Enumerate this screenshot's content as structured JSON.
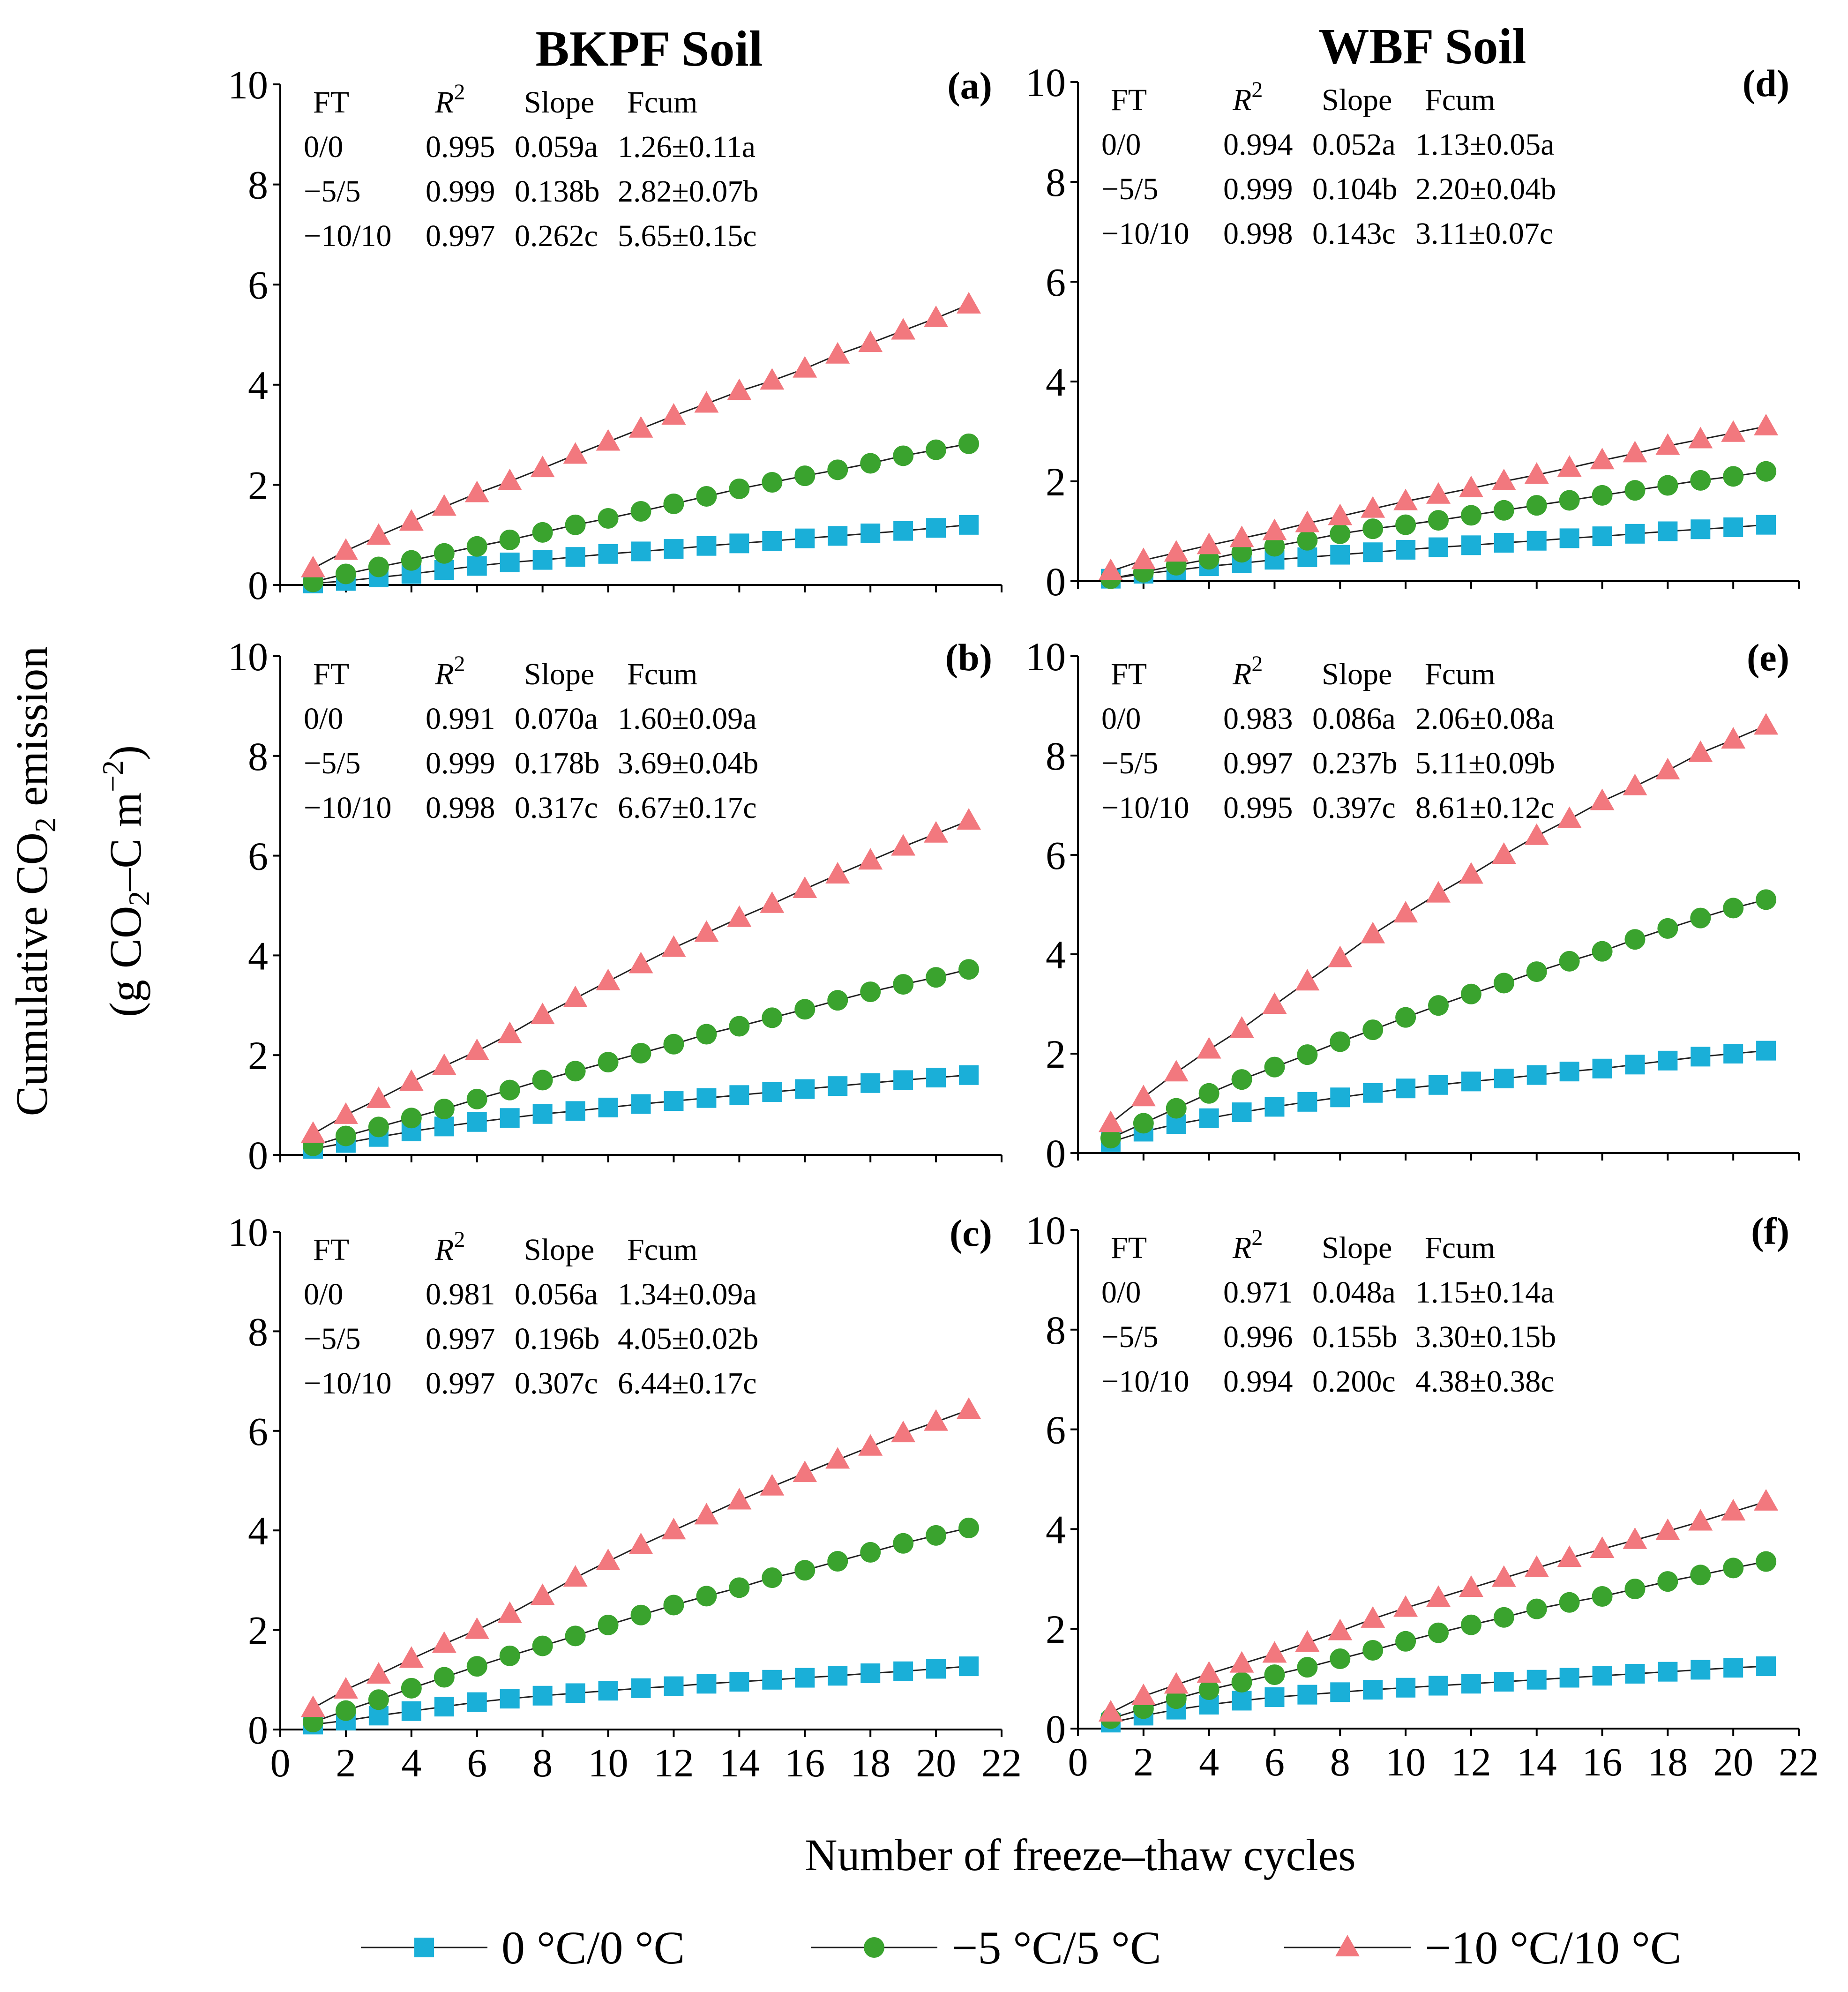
{
  "figure": {
    "col_titles": [
      "BKPF Soil",
      "WBF Soil"
    ],
    "ylabel_line1": "Cumulative CO2 emission",
    "ylabel_line2": "(g CO2–C m−2)",
    "xlabel": "Number of freeze–thaw cycles"
  },
  "legend": [
    {
      "label": "0 °C/0 °C",
      "color": "#1AAFD8",
      "marker": "square"
    },
    {
      "label": "−5 °C/5 °C",
      "color": "#3AA32E",
      "marker": "circle"
    },
    {
      "label": "−10 °C/10 °C",
      "color": "#F2787E",
      "marker": "triangle"
    }
  ],
  "chart_data": [
    {
      "panel": "(a)",
      "soil": "BKPF Soil",
      "type": "line",
      "xlim": [
        0,
        22
      ],
      "ylim": [
        0,
        10
      ],
      "xticks": [
        0,
        2,
        4,
        6,
        8,
        10,
        12,
        14,
        16,
        18,
        20,
        22
      ],
      "yticks": [
        0,
        2,
        4,
        6,
        8,
        10
      ],
      "stats_header": [
        "FT",
        "R2",
        "Slope",
        "Fcum"
      ],
      "stats": [
        [
          "0/0",
          "0.995",
          "0.059a",
          "1.26±0.11a"
        ],
        [
          "−5/5",
          "0.999",
          "0.138b",
          "2.82±0.07b"
        ],
        [
          "−10/10",
          "0.997",
          "0.262c",
          "5.65±0.15c"
        ]
      ],
      "x": [
        1,
        2,
        3,
        4,
        5,
        6,
        7,
        8,
        9,
        10,
        11,
        12,
        13,
        14,
        15,
        16,
        17,
        18,
        19,
        20,
        21
      ],
      "series": [
        {
          "name": "0 °C/0 °C",
          "values": [
            0.03,
            0.08,
            0.15,
            0.22,
            0.3,
            0.38,
            0.45,
            0.5,
            0.56,
            0.62,
            0.67,
            0.72,
            0.78,
            0.83,
            0.88,
            0.93,
            0.98,
            1.03,
            1.08,
            1.14,
            1.2
          ]
        },
        {
          "name": "−5 °C/5 °C",
          "values": [
            0.06,
            0.22,
            0.36,
            0.49,
            0.63,
            0.77,
            0.9,
            1.05,
            1.2,
            1.33,
            1.47,
            1.62,
            1.77,
            1.92,
            2.05,
            2.18,
            2.3,
            2.43,
            2.58,
            2.7,
            2.82
          ]
        },
        {
          "name": "−10 °C/10 °C",
          "values": [
            0.33,
            0.68,
            0.98,
            1.26,
            1.56,
            1.83,
            2.07,
            2.33,
            2.6,
            2.86,
            3.12,
            3.38,
            3.62,
            3.87,
            4.08,
            4.32,
            4.6,
            4.83,
            5.08,
            5.33,
            5.6
          ]
        }
      ]
    },
    {
      "panel": "(b)",
      "soil": "BKPF Soil",
      "type": "line",
      "xlim": [
        0,
        22
      ],
      "ylim": [
        0,
        10
      ],
      "xticks": [
        0,
        2,
        4,
        6,
        8,
        10,
        12,
        14,
        16,
        18,
        20,
        22
      ],
      "yticks": [
        0,
        2,
        4,
        6,
        8,
        10
      ],
      "stats_header": [
        "FT",
        "R2",
        "Slope",
        "Fcum"
      ],
      "stats": [
        [
          "0/0",
          "0.991",
          "0.070a",
          "1.60±0.09a"
        ],
        [
          "−5/5",
          "0.999",
          "0.178b",
          "3.69±0.04b"
        ],
        [
          "−10/10",
          "0.998",
          "0.317c",
          "6.67±0.17c"
        ]
      ],
      "x": [
        1,
        2,
        3,
        4,
        5,
        6,
        7,
        8,
        9,
        10,
        11,
        12,
        13,
        14,
        15,
        16,
        17,
        18,
        19,
        20,
        21
      ],
      "series": [
        {
          "name": "0 °C/0 °C",
          "values": [
            0.12,
            0.24,
            0.36,
            0.47,
            0.57,
            0.66,
            0.74,
            0.82,
            0.88,
            0.95,
            1.02,
            1.08,
            1.14,
            1.2,
            1.26,
            1.32,
            1.38,
            1.44,
            1.5,
            1.55,
            1.6
          ]
        },
        {
          "name": "−5 °C/5 °C",
          "values": [
            0.18,
            0.38,
            0.56,
            0.74,
            0.92,
            1.12,
            1.3,
            1.5,
            1.68,
            1.86,
            2.04,
            2.22,
            2.42,
            2.58,
            2.75,
            2.92,
            3.1,
            3.27,
            3.42,
            3.56,
            3.72
          ]
        },
        {
          "name": "−10 °C/10 °C",
          "values": [
            0.42,
            0.8,
            1.12,
            1.46,
            1.78,
            2.08,
            2.42,
            2.8,
            3.14,
            3.48,
            3.82,
            4.15,
            4.45,
            4.75,
            5.03,
            5.33,
            5.62,
            5.9,
            6.18,
            6.44,
            6.7
          ]
        }
      ]
    },
    {
      "panel": "(c)",
      "soil": "BKPF Soil",
      "type": "line",
      "xlim": [
        0,
        22
      ],
      "ylim": [
        0,
        10
      ],
      "xticks": [
        0,
        2,
        4,
        6,
        8,
        10,
        12,
        14,
        16,
        18,
        20,
        22
      ],
      "yticks": [
        0,
        2,
        4,
        6,
        8,
        10
      ],
      "stats_header": [
        "FT",
        "R2",
        "Slope",
        "Fcum"
      ],
      "stats": [
        [
          "0/0",
          "0.981",
          "0.056a",
          "1.34±0.09a"
        ],
        [
          "−5/5",
          "0.997",
          "0.196b",
          "4.05±0.02b"
        ],
        [
          "−10/10",
          "0.997",
          "0.307c",
          "6.44±0.17c"
        ]
      ],
      "x": [
        1,
        2,
        3,
        4,
        5,
        6,
        7,
        8,
        9,
        10,
        11,
        12,
        13,
        14,
        15,
        16,
        17,
        18,
        19,
        20,
        21
      ],
      "series": [
        {
          "name": "0 °C/0 °C",
          "values": [
            0.1,
            0.18,
            0.28,
            0.37,
            0.46,
            0.55,
            0.62,
            0.68,
            0.73,
            0.78,
            0.83,
            0.87,
            0.92,
            0.96,
            1.0,
            1.04,
            1.08,
            1.13,
            1.17,
            1.22,
            1.27
          ]
        },
        {
          "name": "−5 °C/5 °C",
          "values": [
            0.15,
            0.38,
            0.6,
            0.83,
            1.05,
            1.27,
            1.48,
            1.68,
            1.88,
            2.1,
            2.3,
            2.5,
            2.68,
            2.85,
            3.05,
            3.2,
            3.38,
            3.56,
            3.74,
            3.9,
            4.05
          ]
        },
        {
          "name": "−10 °C/10 °C",
          "values": [
            0.43,
            0.8,
            1.1,
            1.42,
            1.72,
            2.0,
            2.32,
            2.68,
            3.05,
            3.38,
            3.7,
            4.0,
            4.3,
            4.6,
            4.88,
            5.15,
            5.42,
            5.68,
            5.95,
            6.18,
            6.42
          ]
        }
      ]
    },
    {
      "panel": "(d)",
      "soil": "WBF Soil",
      "type": "line",
      "xlim": [
        0,
        22
      ],
      "ylim": [
        0,
        10
      ],
      "xticks": [
        0,
        2,
        4,
        6,
        8,
        10,
        12,
        14,
        16,
        18,
        20,
        22
      ],
      "yticks": [
        0,
        2,
        4,
        6,
        8,
        10
      ],
      "stats_header": [
        "FT",
        "R2",
        "Slope",
        "Fcum"
      ],
      "stats": [
        [
          "0/0",
          "0.994",
          "0.052a",
          "1.13±0.05a"
        ],
        [
          "−5/5",
          "0.999",
          "0.104b",
          "2.20±0.04b"
        ],
        [
          "−10/10",
          "0.998",
          "0.143c",
          "3.11±0.07c"
        ]
      ],
      "x": [
        1,
        2,
        3,
        4,
        5,
        6,
        7,
        8,
        9,
        10,
        11,
        12,
        13,
        14,
        15,
        16,
        17,
        18,
        19,
        20,
        21
      ],
      "series": [
        {
          "name": "0 °C/0 °C",
          "values": [
            0.05,
            0.15,
            0.22,
            0.3,
            0.36,
            0.43,
            0.48,
            0.53,
            0.58,
            0.63,
            0.68,
            0.72,
            0.77,
            0.81,
            0.86,
            0.9,
            0.95,
            1.0,
            1.04,
            1.08,
            1.13
          ]
        },
        {
          "name": "−5 °C/5 °C",
          "values": [
            0.05,
            0.18,
            0.32,
            0.44,
            0.58,
            0.7,
            0.82,
            0.95,
            1.05,
            1.13,
            1.22,
            1.32,
            1.42,
            1.52,
            1.62,
            1.72,
            1.82,
            1.92,
            2.02,
            2.1,
            2.2
          ]
        },
        {
          "name": "−10 °C/10 °C",
          "values": [
            0.2,
            0.42,
            0.57,
            0.72,
            0.86,
            1.0,
            1.16,
            1.3,
            1.45,
            1.6,
            1.73,
            1.86,
            2.0,
            2.13,
            2.27,
            2.42,
            2.56,
            2.71,
            2.84,
            2.97,
            3.1
          ]
        }
      ]
    },
    {
      "panel": "(e)",
      "soil": "WBF Soil",
      "type": "line",
      "xlim": [
        0,
        22
      ],
      "ylim": [
        0,
        10
      ],
      "xticks": [
        0,
        2,
        4,
        6,
        8,
        10,
        12,
        14,
        16,
        18,
        20,
        22
      ],
      "yticks": [
        0,
        2,
        4,
        6,
        8,
        10
      ],
      "stats_header": [
        "FT",
        "R2",
        "Slope",
        "Fcum"
      ],
      "stats": [
        [
          "0/0",
          "0.983",
          "0.086a",
          "2.06±0.08a"
        ],
        [
          "−5/5",
          "0.997",
          "0.237b",
          "5.11±0.09b"
        ],
        [
          "−10/10",
          "0.995",
          "0.397c",
          "8.61±0.12c"
        ]
      ],
      "x": [
        1,
        2,
        3,
        4,
        5,
        6,
        7,
        8,
        9,
        10,
        11,
        12,
        13,
        14,
        15,
        16,
        17,
        18,
        19,
        20,
        21
      ],
      "series": [
        {
          "name": "0 °C/0 °C",
          "values": [
            0.22,
            0.43,
            0.58,
            0.7,
            0.82,
            0.93,
            1.03,
            1.12,
            1.21,
            1.3,
            1.37,
            1.44,
            1.5,
            1.57,
            1.64,
            1.7,
            1.78,
            1.86,
            1.94,
            2.0,
            2.06
          ]
        },
        {
          "name": "−5 °C/5 °C",
          "values": [
            0.3,
            0.6,
            0.9,
            1.2,
            1.48,
            1.73,
            1.98,
            2.24,
            2.48,
            2.73,
            2.97,
            3.2,
            3.42,
            3.65,
            3.86,
            4.06,
            4.3,
            4.52,
            4.73,
            4.93,
            5.1
          ]
        },
        {
          "name": "−10 °C/10 °C",
          "values": [
            0.6,
            1.12,
            1.62,
            2.08,
            2.5,
            2.98,
            3.45,
            3.92,
            4.4,
            4.82,
            5.22,
            5.6,
            6.0,
            6.38,
            6.72,
            7.08,
            7.38,
            7.7,
            8.05,
            8.32,
            8.6
          ]
        }
      ]
    },
    {
      "panel": "(f)",
      "soil": "WBF Soil",
      "type": "line",
      "xlim": [
        0,
        22
      ],
      "ylim": [
        0,
        10
      ],
      "xticks": [
        0,
        2,
        4,
        6,
        8,
        10,
        12,
        14,
        16,
        18,
        20,
        22
      ],
      "yticks": [
        0,
        2,
        4,
        6,
        8,
        10
      ],
      "stats_header": [
        "FT",
        "R2",
        "Slope",
        "Fcum"
      ],
      "stats": [
        [
          "0/0",
          "0.971",
          "0.048a",
          "1.15±0.14a"
        ],
        [
          "−5/5",
          "0.996",
          "0.155b",
          "3.30±0.15b"
        ],
        [
          "−10/10",
          "0.994",
          "0.200c",
          "4.38±0.38c"
        ]
      ],
      "x": [
        1,
        2,
        3,
        4,
        5,
        6,
        7,
        8,
        9,
        10,
        11,
        12,
        13,
        14,
        15,
        16,
        17,
        18,
        19,
        20,
        21
      ],
      "series": [
        {
          "name": "0 °C/0 °C",
          "values": [
            0.12,
            0.26,
            0.38,
            0.48,
            0.56,
            0.63,
            0.68,
            0.73,
            0.78,
            0.82,
            0.86,
            0.9,
            0.94,
            0.98,
            1.02,
            1.06,
            1.1,
            1.14,
            1.18,
            1.22,
            1.25
          ]
        },
        {
          "name": "−5 °C/5 °C",
          "values": [
            0.2,
            0.4,
            0.6,
            0.78,
            0.93,
            1.08,
            1.23,
            1.4,
            1.57,
            1.75,
            1.92,
            2.08,
            2.23,
            2.4,
            2.53,
            2.65,
            2.8,
            2.95,
            3.08,
            3.22,
            3.35
          ]
        },
        {
          "name": "−10 °C/10 °C",
          "values": [
            0.32,
            0.65,
            0.88,
            1.1,
            1.3,
            1.5,
            1.72,
            1.95,
            2.2,
            2.42,
            2.62,
            2.82,
            3.02,
            3.22,
            3.42,
            3.6,
            3.78,
            3.96,
            4.15,
            4.35,
            4.55
          ]
        }
      ]
    }
  ]
}
